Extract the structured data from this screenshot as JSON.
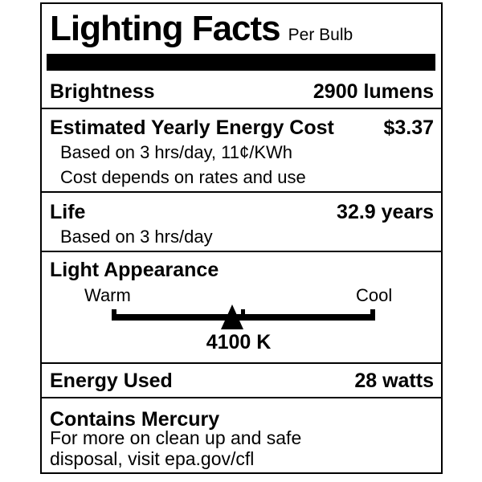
{
  "label": {
    "title": "Lighting Facts",
    "subtitle": "Per Bulb",
    "rows": {
      "brightness": {
        "label": "Brightness",
        "value": "2900 lumens"
      },
      "energy_cost": {
        "label": "Estimated Yearly Energy Cost",
        "value": "$3.37",
        "notes": [
          "Based on 3 hrs/day, 11¢/KWh",
          "Cost depends on rates and use"
        ]
      },
      "life": {
        "label": "Life",
        "value": "32.9 years",
        "note": "Based on 3 hrs/day"
      },
      "light_appearance": {
        "label": "Light Appearance",
        "warm_label": "Warm",
        "cool_label": "Cool",
        "kelvin": "4100 K",
        "marker_position_pct": 45.7
      },
      "energy_used": {
        "label": "Energy Used",
        "value": "28 watts"
      },
      "mercury": {
        "label": "Contains Mercury",
        "lines": [
          "For more on clean up and safe",
          "disposal, visit epa.gov/cfl"
        ]
      }
    },
    "colors": {
      "ink": "#000000",
      "background": "#ffffff"
    }
  }
}
